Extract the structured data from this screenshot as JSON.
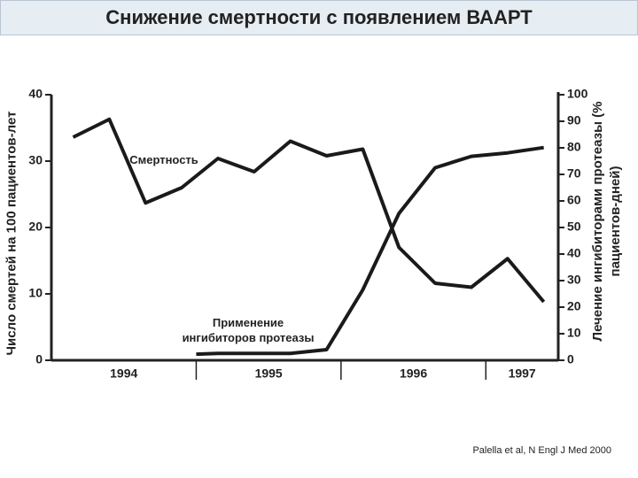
{
  "title": "Снижение смертности с появлением ВААРТ",
  "citation": "Palella et al, N Engl J Med 2000",
  "chart_data": {
    "type": "line",
    "ylabel": "Число смертей на 100 пациентов-лет",
    "y2label": "Лечение ингибиторами протеазы (% пациентов-дней)",
    "xlim": [
      1994,
      1997.5
    ],
    "xticks": [
      {
        "value": 1994.5,
        "label": "1994"
      },
      {
        "value": 1995.5,
        "label": "1995"
      },
      {
        "value": 1996.5,
        "label": "1996"
      },
      {
        "value": 1997.25,
        "label": "1997"
      }
    ],
    "year_dividers": [
      1995,
      1996,
      1997
    ],
    "ylim": [
      0,
      40
    ],
    "yticks": [
      0,
      10,
      20,
      30,
      40
    ],
    "y2lim": [
      0,
      100
    ],
    "y2ticks": [
      0,
      10,
      20,
      30,
      40,
      50,
      60,
      70,
      80,
      90,
      100
    ],
    "series": [
      {
        "name": "Смертность",
        "color": "#1a1a1a",
        "x": [
          1994.15,
          1994.4,
          1994.65,
          1994.9,
          1995.15,
          1995.4,
          1995.65,
          1995.9,
          1996.15,
          1996.4,
          1996.65,
          1996.9,
          1997.15,
          1997.4
        ],
        "values": [
          33.6,
          36.3,
          23.7,
          26.0,
          30.4,
          28.4,
          33.0,
          30.8,
          31.8,
          17.0,
          11.6,
          11.0,
          15.3,
          8.8
        ]
      },
      {
        "name": "Применение ингибиторов протеазы",
        "color": "#1a1a1a",
        "axis": "y2",
        "x": [
          1995.0,
          1995.15,
          1995.4,
          1995.65,
          1995.9,
          1996.15,
          1996.4,
          1996.65,
          1996.9,
          1997.15,
          1997.4
        ],
        "values": [
          2.3,
          2.6,
          2.6,
          2.6,
          4.0,
          26.5,
          55.3,
          72.5,
          76.8,
          78.1,
          80.1
        ]
      }
    ]
  }
}
